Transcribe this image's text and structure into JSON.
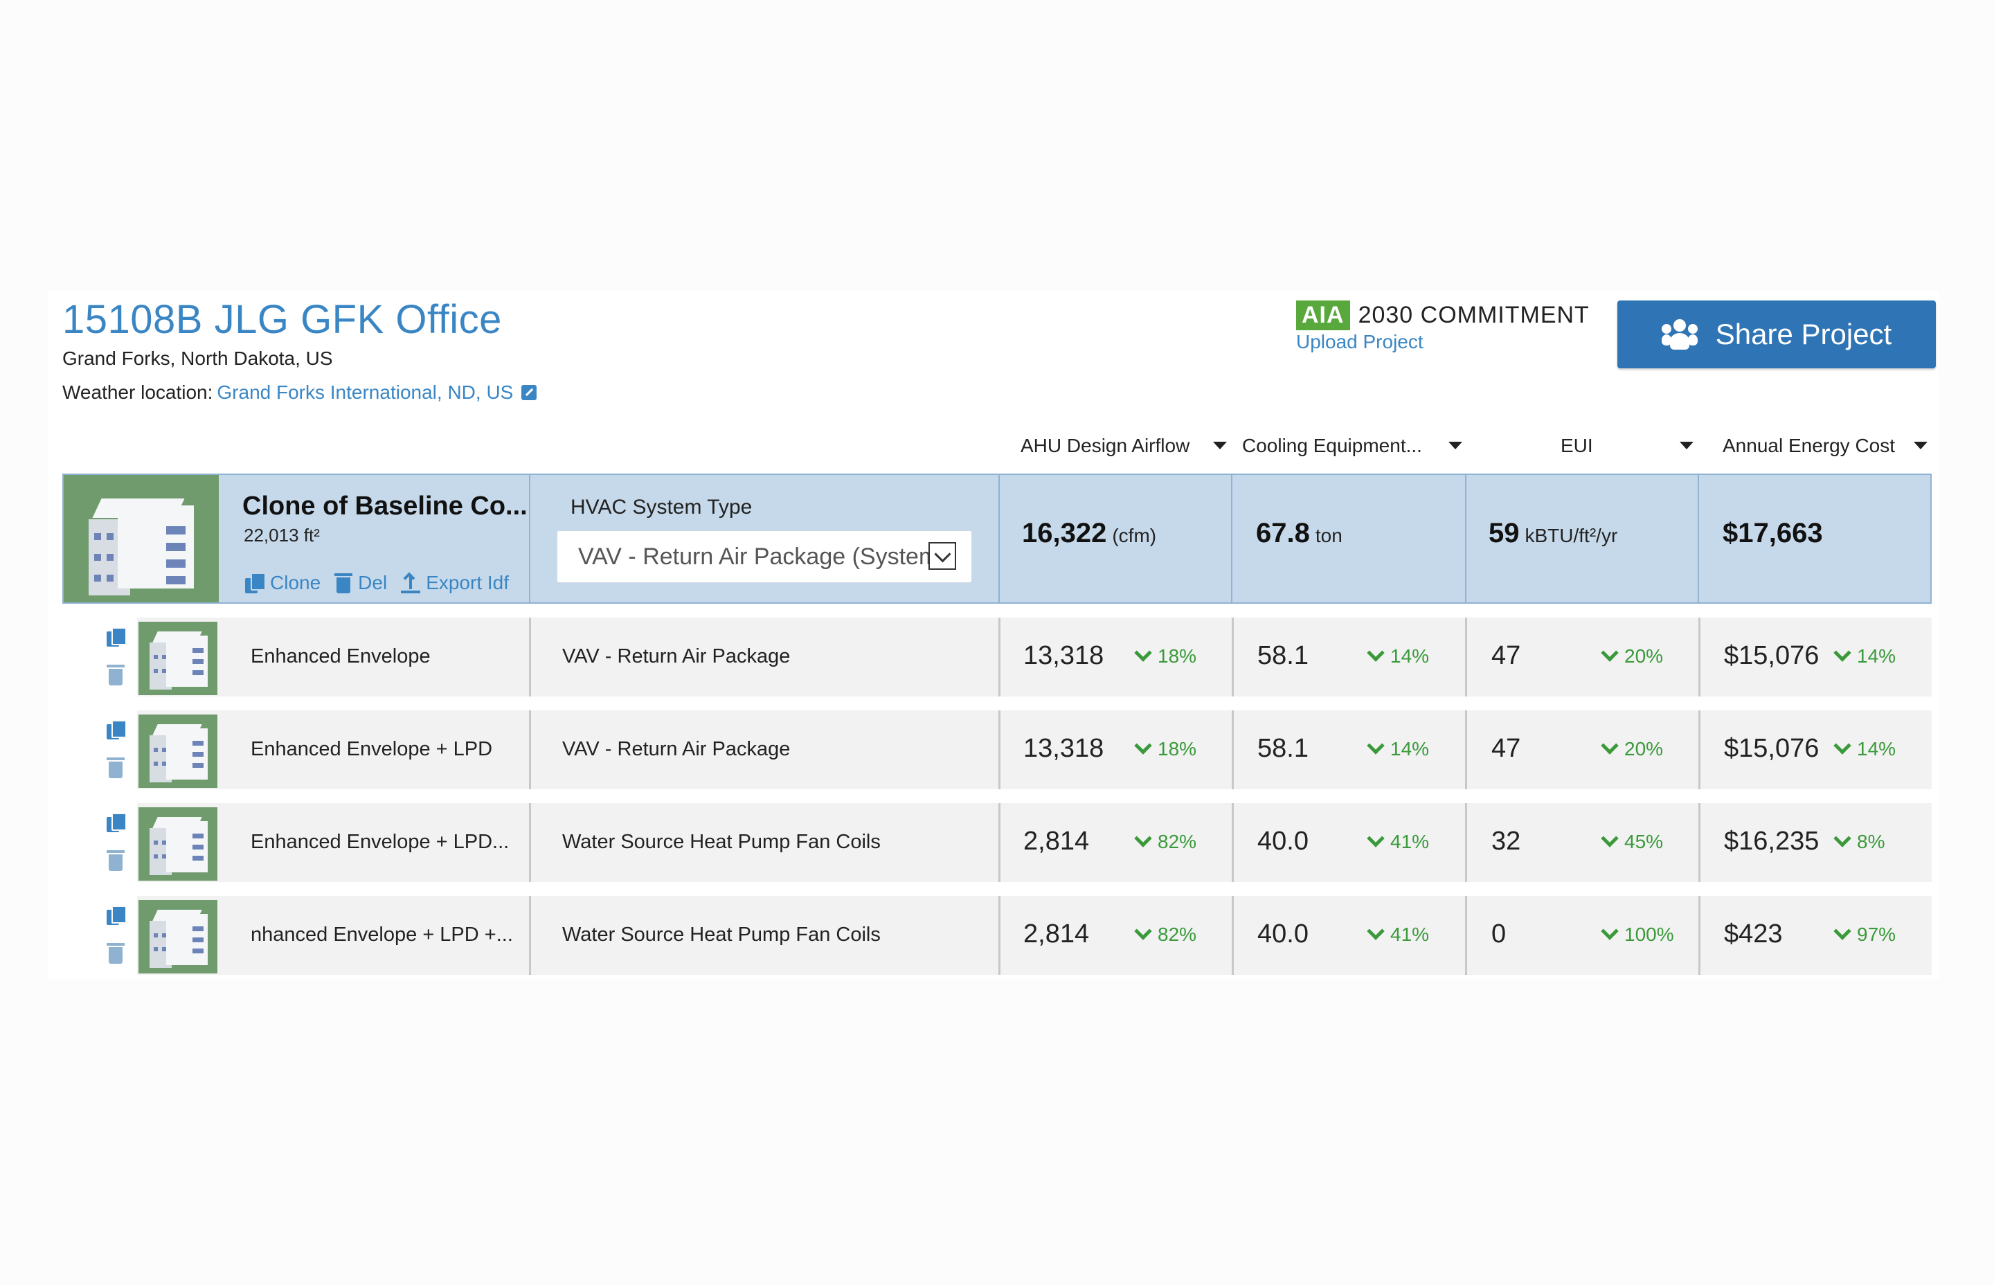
{
  "project": {
    "title": "15108B JLG GFK Office",
    "location": "Grand Forks, North Dakota, US",
    "weather_label": "Weather location:",
    "weather_link": "Grand Forks International, ND, US"
  },
  "aia": {
    "badge": "AIA",
    "text": "2030 COMMITMENT",
    "upload": "Upload Project"
  },
  "share_button": "Share Project",
  "columns": [
    "AHU Design Airflow",
    "Cooling Equipment...",
    "EUI",
    "Annual Energy Cost"
  ],
  "baseline": {
    "name": "Clone of Baseline Co...",
    "area": "22,013 ft²",
    "actions": {
      "clone": "Clone",
      "del": "Del",
      "export": "Export Idf"
    },
    "hvac_label": "HVAC System Type",
    "hvac_value": "VAV - Return Air Package (System",
    "airflow": "16,322",
    "airflow_unit": "(cfm)",
    "cooling": "67.8",
    "cooling_unit": "ton",
    "eui": "59",
    "eui_unit": "kBTU/ft²/yr",
    "cost": "$17,663"
  },
  "rows": [
    {
      "name": "Enhanced Envelope",
      "system": "VAV - Return Air Package",
      "airflow": "13,318",
      "airflow_pct": "18%",
      "cooling": "58.1",
      "cooling_pct": "14%",
      "eui": "47",
      "eui_pct": "20%",
      "cost": "$15,076",
      "cost_pct": "14%"
    },
    {
      "name": "Enhanced Envelope + LPD",
      "system": "VAV - Return Air Package",
      "airflow": "13,318",
      "airflow_pct": "18%",
      "cooling": "58.1",
      "cooling_pct": "14%",
      "eui": "47",
      "eui_pct": "20%",
      "cost": "$15,076",
      "cost_pct": "14%"
    },
    {
      "name": "Enhanced Envelope + LPD...",
      "system": "Water Source Heat Pump Fan Coils",
      "airflow": "2,814",
      "airflow_pct": "82%",
      "cooling": "40.0",
      "cooling_pct": "41%",
      "eui": "32",
      "eui_pct": "45%",
      "cost": "$16,235",
      "cost_pct": "8%"
    },
    {
      "name": "nhanced Envelope + LPD +...",
      "system": "Water Source Heat Pump Fan Coils",
      "airflow": "2,814",
      "airflow_pct": "82%",
      "cooling": "40.0",
      "cooling_pct": "41%",
      "eui": "0",
      "eui_pct": "100%",
      "cost": "$423",
      "cost_pct": "97%"
    }
  ],
  "colors": {
    "accent": "#3a86c4",
    "button": "#2f75b5",
    "positive": "#3a9a3a",
    "baseline_bg": "#c6d9ea",
    "aia_green": "#58a83c"
  }
}
